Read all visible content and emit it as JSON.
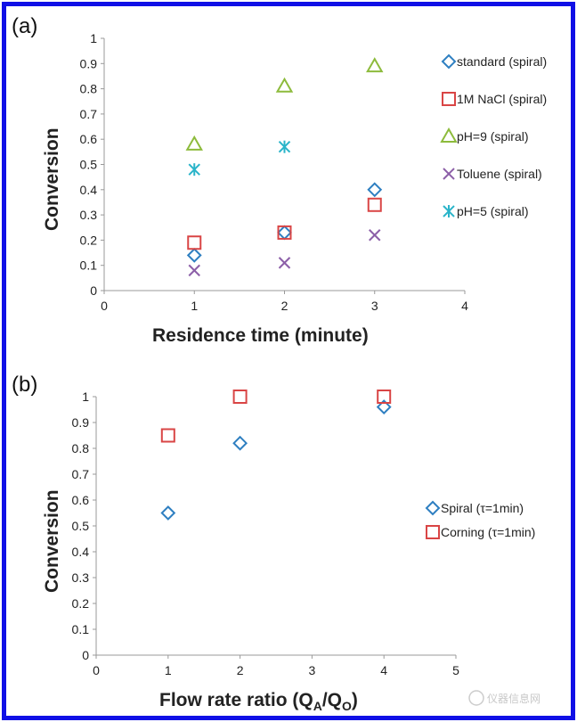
{
  "colors": {
    "frame": "#1010e6",
    "standard": "#2e7fc1",
    "nacl": "#d94545",
    "ph9": "#8dbb3c",
    "toluene": "#8c5fa8",
    "ph5": "#2ab4c9"
  },
  "watermark": {
    "text": "仪器信息网",
    "icon": "flask-logo-icon"
  },
  "chart_data": [
    {
      "panel": "(a)",
      "type": "scatter",
      "xlabel": "Residence time (minute)",
      "ylabel": "Conversion",
      "xlim": [
        0,
        4
      ],
      "ylim": [
        0,
        1
      ],
      "xticks": [
        "0",
        "1",
        "2",
        "3",
        "4"
      ],
      "yticks": [
        "0",
        "0.1",
        "0.2",
        "0.3",
        "0.4",
        "0.5",
        "0.6",
        "0.7",
        "0.8",
        "0.9",
        "1"
      ],
      "grid": false,
      "legend": "right",
      "series": [
        {
          "name": "standard (spiral)",
          "marker": "diamond",
          "color": "#2e7fc1",
          "x": [
            1,
            2,
            3
          ],
          "y": [
            0.14,
            0.23,
            0.4
          ]
        },
        {
          "name": "1M NaCl (spiral)",
          "marker": "square",
          "color": "#d94545",
          "x": [
            1,
            2,
            3
          ],
          "y": [
            0.19,
            0.23,
            0.34
          ]
        },
        {
          "name": "pH=9 (spiral)",
          "marker": "triangle",
          "color": "#8dbb3c",
          "x": [
            1,
            2,
            3
          ],
          "y": [
            0.58,
            0.81,
            0.89
          ]
        },
        {
          "name": "Toluene (spiral)",
          "marker": "x",
          "color": "#8c5fa8",
          "x": [
            1,
            2,
            3
          ],
          "y": [
            0.08,
            0.11,
            0.22
          ]
        },
        {
          "name": "pH=5 (spiral)",
          "marker": "star",
          "color": "#2ab4c9",
          "x": [
            1,
            2
          ],
          "y": [
            0.48,
            0.57
          ]
        }
      ]
    },
    {
      "panel": "(b)",
      "type": "scatter",
      "xlabel": "Flow rate ratio (Q",
      "xlabel_sub1": "A",
      "xlabel_mid": "/Q",
      "xlabel_sub2": "O",
      "xlabel_end": ")",
      "ylabel": "Conversion",
      "xlim": [
        0,
        5
      ],
      "ylim": [
        0,
        1
      ],
      "xticks": [
        "0",
        "1",
        "2",
        "3",
        "4",
        "5"
      ],
      "yticks": [
        "0",
        "0.1",
        "0.2",
        "0.3",
        "0.4",
        "0.5",
        "0.6",
        "0.7",
        "0.8",
        "0.9",
        "1"
      ],
      "grid": false,
      "legend": "right",
      "series": [
        {
          "name": "Spiral (τ=1min)",
          "marker": "diamond",
          "color": "#2e7fc1",
          "x": [
            1,
            2,
            4
          ],
          "y": [
            0.55,
            0.82,
            0.96
          ]
        },
        {
          "name": "Corning (τ=1min)",
          "marker": "square",
          "color": "#d94545",
          "x": [
            1,
            2,
            4
          ],
          "y": [
            0.85,
            1.0,
            1.0
          ]
        }
      ]
    }
  ]
}
